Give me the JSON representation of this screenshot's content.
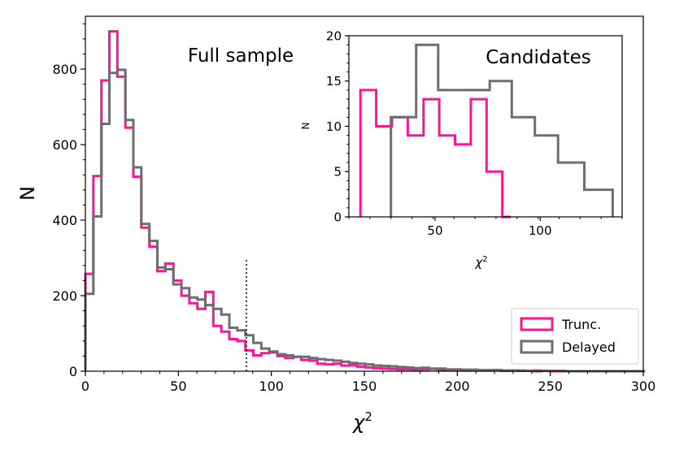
{
  "chart_data": [
    {
      "type": "histogram",
      "panel": "main",
      "annotation": "Full sample",
      "xlabel": "χ",
      "xlabel_sup": "2",
      "ylabel": "N",
      "xlim": [
        0,
        300
      ],
      "ylim": [
        0,
        940
      ],
      "xticks": [
        0,
        50,
        100,
        150,
        200,
        250,
        300
      ],
      "yticks": [
        0,
        200,
        400,
        600,
        800
      ],
      "legend": {
        "placement": "bottom-right",
        "entries": [
          "Trunc.",
          "Delayed"
        ]
      },
      "reference_line": {
        "x": 86.6,
        "y_top": 300,
        "style": "dotted"
      },
      "series": [
        {
          "name": "Trunc.",
          "color": "#ff1493",
          "edges": [
            0,
            4.3,
            8.6,
            12.9,
            17.2,
            21.5,
            25.8,
            30.1,
            34.4,
            38.7,
            43,
            47.3,
            51.6,
            55.9,
            60.2,
            64.5,
            68.8,
            73.1,
            77.4,
            81.7,
            86,
            90.3,
            94.6,
            98.9,
            103.2,
            107.5,
            111.8,
            116.1,
            120.4,
            124.7,
            129,
            133.3,
            137.6,
            141.9,
            146.2,
            150.5,
            154.8,
            159.1,
            163.4,
            167.7,
            172,
            176.3,
            180.6,
            184.9,
            189.2,
            193.5,
            197.8,
            202.1,
            206.4,
            210.7,
            215,
            219.3,
            223.6,
            227.9,
            232.2,
            236.5,
            240.8,
            245.1,
            249.4,
            253.7,
            258,
            262.3,
            266.6,
            270.9,
            275.2,
            279.5,
            283.8,
            288.1,
            292.4,
            296.7,
            301
          ],
          "counts": [
            258,
            517,
            770,
            900,
            780,
            645,
            515,
            380,
            330,
            265,
            285,
            240,
            200,
            180,
            165,
            210,
            120,
            105,
            85,
            80,
            55,
            42,
            48,
            50,
            40,
            35,
            38,
            30,
            28,
            20,
            18,
            20,
            15,
            16,
            12,
            10,
            8,
            7,
            6,
            5,
            5,
            4,
            5,
            6,
            3,
            4,
            3,
            2,
            3,
            2,
            2,
            3,
            1,
            2,
            1,
            1,
            0,
            1,
            0,
            0,
            0,
            0,
            0,
            0,
            0,
            0,
            0,
            0,
            0,
            0
          ]
        },
        {
          "name": "Delayed",
          "color": "#6e6e6e",
          "edges": [
            0,
            4.3,
            8.6,
            12.9,
            17.2,
            21.5,
            25.8,
            30.1,
            34.4,
            38.7,
            43,
            47.3,
            51.6,
            55.9,
            60.2,
            64.5,
            68.8,
            73.1,
            77.4,
            81.7,
            86,
            90.3,
            94.6,
            98.9,
            103.2,
            107.5,
            111.8,
            116.1,
            120.4,
            124.7,
            129,
            133.3,
            137.6,
            141.9,
            146.2,
            150.5,
            154.8,
            159.1,
            163.4,
            167.7,
            172,
            176.3,
            180.6,
            184.9,
            189.2,
            193.5,
            197.8,
            202.1,
            206.4,
            210.7,
            215,
            219.3,
            223.6,
            227.9,
            232.2,
            236.5,
            240.8,
            245.1,
            249.4,
            253.7,
            258,
            262.3,
            266.6,
            270.9,
            275.2,
            279.5,
            283.8,
            288.1,
            292.4,
            296.7,
            301
          ],
          "counts": [
            205,
            410,
            655,
            790,
            798,
            665,
            540,
            390,
            345,
            275,
            270,
            230,
            220,
            195,
            190,
            175,
            165,
            150,
            115,
            108,
            95,
            75,
            60,
            52,
            45,
            42,
            38,
            38,
            35,
            32,
            30,
            28,
            25,
            22,
            20,
            18,
            15,
            14,
            13,
            11,
            10,
            8,
            9,
            7,
            7,
            5,
            5,
            4,
            4,
            3,
            3,
            3,
            2,
            2,
            2,
            1,
            2,
            1,
            1,
            1,
            0,
            0,
            0,
            0,
            0,
            0,
            0,
            0,
            0,
            0
          ]
        }
      ]
    },
    {
      "type": "histogram",
      "panel": "inset",
      "annotation": "Candidates",
      "xlabel": "χ",
      "xlabel_sup": "2",
      "ylabel": "N",
      "xlim": [
        9,
        139
      ],
      "ylim": [
        0,
        20
      ],
      "xticks": [
        50,
        100
      ],
      "yticks": [
        0,
        5,
        10,
        15,
        20
      ],
      "series": [
        {
          "name": "Trunc.",
          "color": "#ff1493",
          "edges": [
            14.5,
            22,
            29.5,
            37,
            44.5,
            52,
            59.5,
            67,
            74.5,
            82,
            86
          ],
          "counts": [
            14,
            10,
            11,
            9,
            13,
            9,
            8,
            13,
            5,
            0
          ]
        },
        {
          "name": "Delayed",
          "color": "#6e6e6e",
          "edges": [
            29,
            41,
            51.5,
            66,
            76,
            86.5,
            97.5,
            108.5,
            121,
            134.5
          ],
          "counts": [
            11,
            19,
            14,
            14,
            15,
            11,
            9,
            6,
            3
          ]
        }
      ]
    }
  ]
}
